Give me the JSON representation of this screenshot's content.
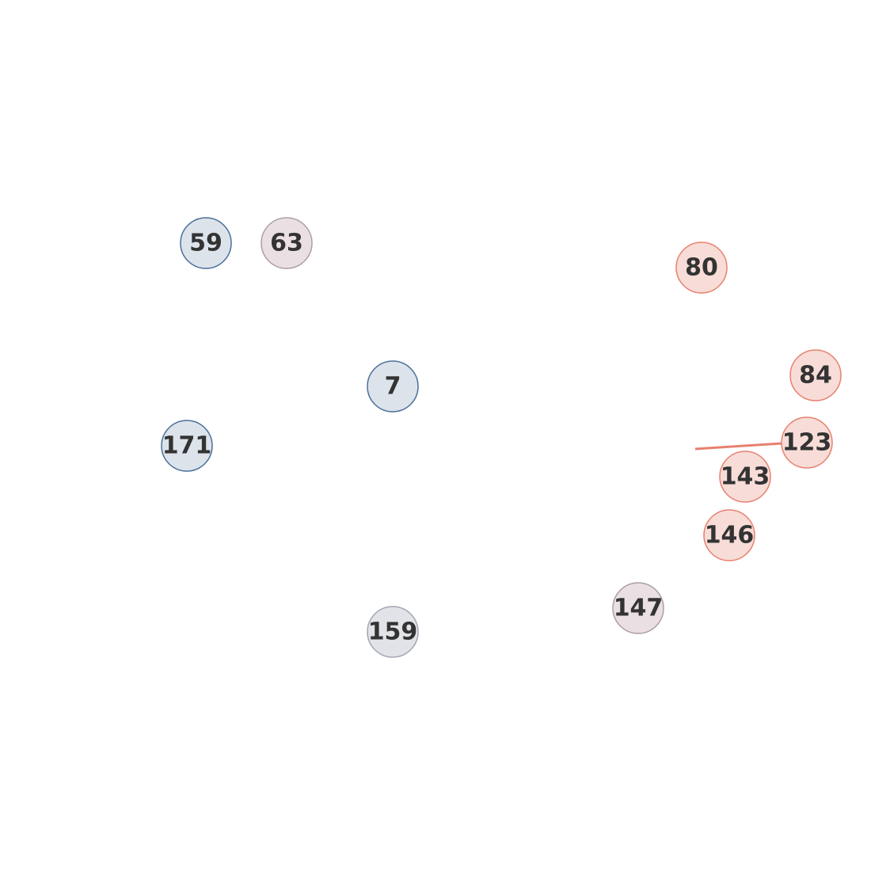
{
  "colors": {
    "blue_stroke": "#4a6f99",
    "blue_fill": "#dde3eb",
    "red_stroke": "#e8806f",
    "red_fill": "#f8dcd7",
    "mauve_stroke": "#ad9ea8",
    "mauve_fill": "#eadfe3",
    "gray_stroke": "#a3a6b3",
    "gray_fill": "#e1e3e8",
    "edge": "#e8806f"
  },
  "nodes": [
    {
      "id": "59",
      "label": "59",
      "color_group": "blue"
    },
    {
      "id": "63",
      "label": "63",
      "color_group": "mauve"
    },
    {
      "id": "80",
      "label": "80",
      "color_group": "red"
    },
    {
      "id": "7",
      "label": "7",
      "color_group": "blue"
    },
    {
      "id": "84",
      "label": "84",
      "color_group": "red"
    },
    {
      "id": "171",
      "label": "171",
      "color_group": "blue"
    },
    {
      "id": "123",
      "label": "123",
      "color_group": "red"
    },
    {
      "id": "143",
      "label": "143",
      "color_group": "red"
    },
    {
      "id": "146",
      "label": "146",
      "color_group": "red"
    },
    {
      "id": "147",
      "label": "147",
      "color_group": "mauve"
    },
    {
      "id": "159",
      "label": "159",
      "color_group": "gray"
    }
  ],
  "edges": [
    {
      "from": "123",
      "to": "offscreen",
      "color_group": "red"
    }
  ]
}
